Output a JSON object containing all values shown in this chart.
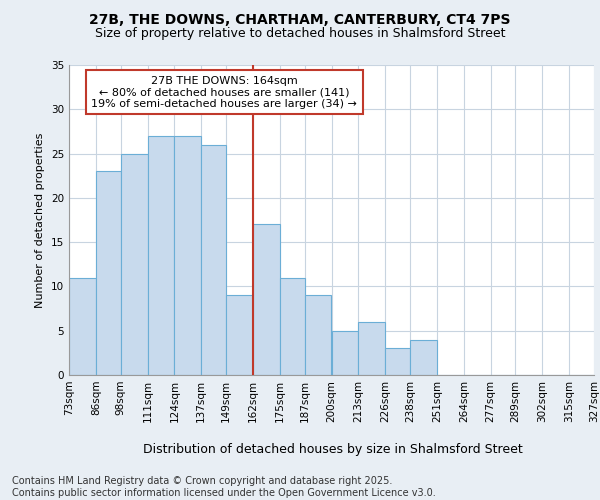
{
  "title_line1": "27B, THE DOWNS, CHARTHAM, CANTERBURY, CT4 7PS",
  "title_line2": "Size of property relative to detached houses in Shalmsford Street",
  "xlabel": "Distribution of detached houses by size in Shalmsford Street",
  "ylabel": "Number of detached properties",
  "footnote": "Contains HM Land Registry data © Crown copyright and database right 2025.\nContains public sector information licensed under the Open Government Licence v3.0.",
  "annotation_title": "27B THE DOWNS: 164sqm",
  "annotation_line2": "← 80% of detached houses are smaller (141)",
  "annotation_line3": "19% of semi-detached houses are larger (34) →",
  "bar_color": "#c8daed",
  "bar_edge_color": "#6baed6",
  "ref_line_color": "#c0392b",
  "ref_line_x": 162,
  "annotation_box_color": "#ffffff",
  "annotation_box_edge_color": "#c0392b",
  "bins": [
    73,
    86,
    98,
    111,
    124,
    137,
    149,
    162,
    175,
    187,
    200,
    213,
    226,
    238,
    251,
    264,
    277,
    289,
    302,
    315,
    327
  ],
  "counts": [
    11,
    23,
    25,
    27,
    27,
    26,
    9,
    17,
    11,
    9,
    5,
    6,
    3,
    4,
    0,
    0,
    0,
    0,
    0,
    0
  ],
  "ylim": [
    0,
    35
  ],
  "yticks": [
    0,
    5,
    10,
    15,
    20,
    25,
    30,
    35
  ],
  "background_color": "#e8eef4",
  "plot_bg_color": "#ffffff",
  "grid_color": "#c8d4e0",
  "title1_fontsize": 10,
  "title2_fontsize": 9,
  "ylabel_fontsize": 8,
  "xlabel_fontsize": 9,
  "tick_fontsize": 7.5,
  "footnote_fontsize": 7,
  "annot_fontsize": 8
}
